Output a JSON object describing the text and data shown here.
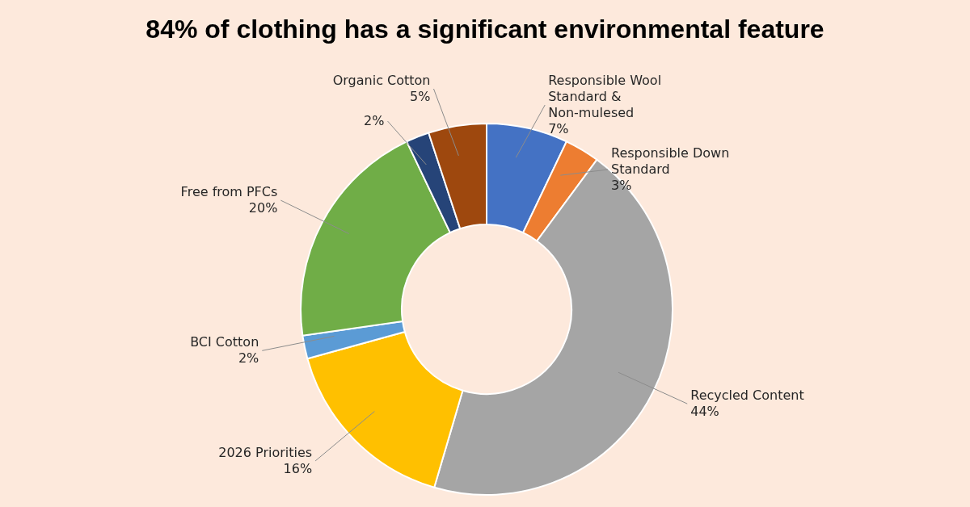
{
  "chart_data": {
    "type": "donut",
    "title": "84% of clothing has a significant environmental feature",
    "categories": [
      "Responsible Wool Standard & Non-mulesed",
      "Responsible Down Standard",
      "Recycled Content",
      "2026 Priorities",
      "BCI Cotton",
      "Free from PFCs",
      null,
      "Organic Cotton"
    ],
    "values": [
      7,
      3,
      44,
      16,
      2,
      20,
      2,
      5
    ],
    "colors": [
      "#4472c4",
      "#ed7d31",
      "#a5a5a5",
      "#ffc000",
      "#5b9bd5",
      "#70ad47",
      "#264478",
      "#9e480e"
    ],
    "value_labels": [
      "7%",
      "3%",
      "44%",
      "16%",
      "2%",
      "20%",
      "2%",
      "5%"
    ]
  }
}
